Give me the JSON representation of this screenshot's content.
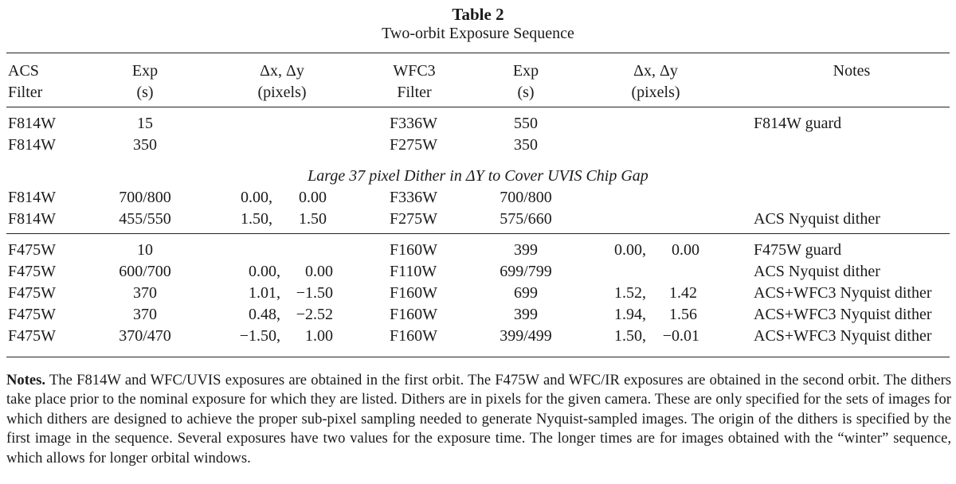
{
  "table": {
    "number": "Table 2",
    "caption": "Two-orbit Exposure Sequence",
    "header": {
      "acs_filter": [
        "ACS",
        "Filter"
      ],
      "acs_exp": [
        "Exp",
        "(s)"
      ],
      "acs_dither": [
        "Δx, Δy",
        "(pixels)"
      ],
      "wfc3_filter": [
        "WFC3",
        "Filter"
      ],
      "wfc3_exp": [
        "Exp",
        "(s)"
      ],
      "wfc3_dither": [
        "Δx, Δy",
        "(pixels)"
      ],
      "notes": "Notes"
    },
    "group1": [
      {
        "acs": "F814W",
        "acs_exp": "15",
        "acs_dx": "",
        "acs_dy": "",
        "wfc3": "F336W",
        "wfc3_exp": "550",
        "wfc3_dx": "",
        "wfc3_dy": "",
        "note": "F814W guard"
      },
      {
        "acs": "F814W",
        "acs_exp": "350",
        "acs_dx": "",
        "acs_dy": "",
        "wfc3": "F275W",
        "wfc3_exp": "350",
        "wfc3_dx": "",
        "wfc3_dy": "",
        "note": ""
      }
    ],
    "section_label": "Large 37 pixel Dither in ΔY to Cover UVIS Chip Gap",
    "group2": [
      {
        "acs": "F814W",
        "acs_exp": "700/800",
        "acs_dx": "0.00,",
        "acs_dy": "0.00",
        "wfc3": "F336W",
        "wfc3_exp": "700/800",
        "wfc3_dx": "",
        "wfc3_dy": "",
        "note": ""
      },
      {
        "acs": "F814W",
        "acs_exp": "455/550",
        "acs_dx": "1.50,",
        "acs_dy": "1.50",
        "wfc3": "F275W",
        "wfc3_exp": "575/660",
        "wfc3_dx": "",
        "wfc3_dy": "",
        "note": "ACS Nyquist dither"
      }
    ],
    "group3": [
      {
        "acs": "F475W",
        "acs_exp": "10",
        "acs_dx": "",
        "acs_dy": "",
        "wfc3": "F160W",
        "wfc3_exp": "399",
        "wfc3_dx": "0.00,",
        "wfc3_dy": "0.00",
        "note": "F475W guard"
      },
      {
        "acs": "F475W",
        "acs_exp": "600/700",
        "acs_dx": "0.00,",
        "acs_dy": "0.00",
        "wfc3": "F110W",
        "wfc3_exp": "699/799",
        "wfc3_dx": "",
        "wfc3_dy": "",
        "note": "ACS Nyquist dither"
      },
      {
        "acs": "F475W",
        "acs_exp": "370",
        "acs_dx": "1.01,",
        "acs_dy": "−1.50",
        "wfc3": "F160W",
        "wfc3_exp": "699",
        "wfc3_dx": "1.52,",
        "wfc3_dy": "1.42",
        "note": "ACS+WFC3 Nyquist dither"
      },
      {
        "acs": "F475W",
        "acs_exp": "370",
        "acs_dx": "0.48,",
        "acs_dy": "−2.52",
        "wfc3": "F160W",
        "wfc3_exp": "399",
        "wfc3_dx": "1.94,",
        "wfc3_dy": "1.56",
        "note": "ACS+WFC3 Nyquist dither"
      },
      {
        "acs": "F475W",
        "acs_exp": "370/470",
        "acs_dx": "−1.50,",
        "acs_dy": "1.00",
        "wfc3": "F160W",
        "wfc3_exp": "399/499",
        "wfc3_dx": "1.50,",
        "wfc3_dy": "−0.01",
        "note": "ACS+WFC3 Nyquist dither"
      }
    ]
  },
  "notes": {
    "label": "Notes.",
    "text": " The F814W and WFC/UVIS exposures are obtained in the first orbit. The F475W and WFC/IR exposures are obtained in the second orbit. The dithers take place prior to the nominal exposure for which they are listed. Dithers are in pixels for the given camera. These are only specified for the sets of images for which dithers are designed to achieve the proper sub-pixel sampling needed to generate Nyquist-sampled images. The origin of the dithers is specified by the first image in the sequence. Several exposures have two values for the exposure time. The longer times are for images obtained with the “winter” sequence, which allows for longer orbital windows."
  }
}
